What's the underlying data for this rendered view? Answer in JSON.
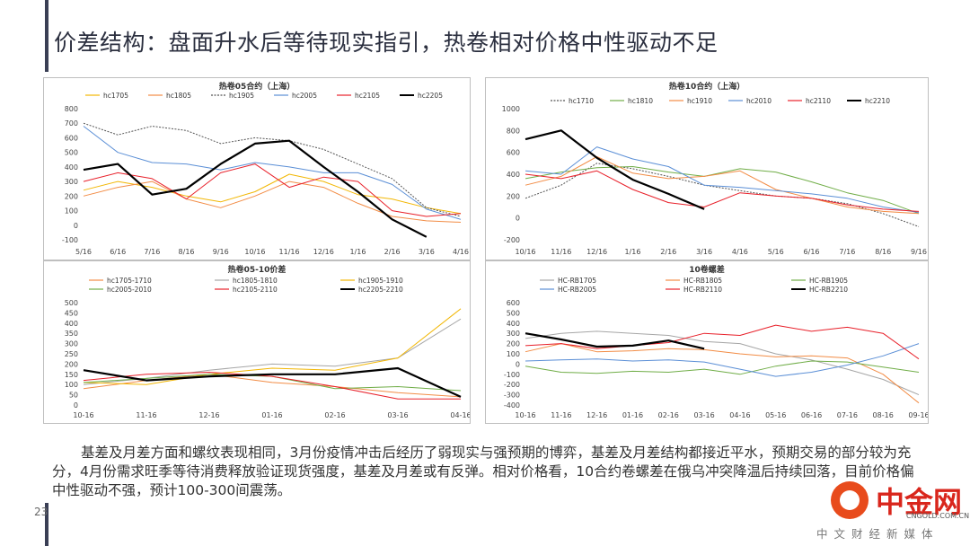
{
  "page": {
    "title": "价差结构：盘面升水后等待现实指引，热卷相对价格中性驱动不足",
    "page_number": "23",
    "description": "基差及月差方面和螺纹表现相同，3月份疫情冲击后经历了弱现实与强预期的博弈，基差及月差结构都接近平水，预期交易的部分较为充分，4月份需求旺季等待消费释放验证现货强度，基差及月差或有反弹。相对价格看，10合约卷螺差在俄乌冲突降温后持续回落，目前价格偏中性驱动不强，预计100-300间震荡。",
    "logo": {
      "main": "中金网",
      "url": "CNGOLD.COM.CN",
      "sub": "中文财经新媒体",
      "brand_color": "#d9261c"
    }
  },
  "chart_data": [
    {
      "id": "c1",
      "type": "line",
      "title": "热卷05合约（上海）",
      "ylim": [
        -100,
        800
      ],
      "yticks": [
        -100,
        0,
        100,
        200,
        300,
        400,
        500,
        600,
        700,
        800
      ],
      "x": [
        "5/16",
        "6/16",
        "7/16",
        "8/16",
        "9/16",
        "10/16",
        "11/16",
        "12/16",
        "1/16",
        "2/16",
        "3/16",
        "4/16"
      ],
      "series": [
        {
          "name": "hc1705",
          "color": "#f2b705",
          "width": 1,
          "values": [
            240,
            300,
            260,
            200,
            160,
            230,
            350,
            300,
            210,
            180,
            120,
            80
          ]
        },
        {
          "name": "hc1805",
          "color": "#f28c45",
          "width": 1,
          "values": [
            200,
            260,
            300,
            180,
            120,
            200,
            300,
            260,
            150,
            60,
            30,
            20
          ]
        },
        {
          "name": "hc1905",
          "color": "#555555",
          "width": 1,
          "dash": true,
          "values": [
            700,
            620,
            680,
            650,
            560,
            600,
            580,
            520,
            420,
            320,
            120,
            60
          ]
        },
        {
          "name": "hc2005",
          "color": "#5b8fd6",
          "width": 1,
          "values": [
            680,
            500,
            430,
            420,
            380,
            430,
            400,
            360,
            360,
            280,
            110,
            40
          ]
        },
        {
          "name": "hc2105",
          "color": "#e8202a",
          "width": 1,
          "values": [
            300,
            360,
            320,
            180,
            360,
            420,
            260,
            330,
            300,
            100,
            60,
            80
          ]
        },
        {
          "name": "hc2205",
          "color": "#000000",
          "width": 2.2,
          "values": [
            380,
            420,
            210,
            250,
            420,
            560,
            580,
            400,
            230,
            40,
            -80,
            null
          ]
        }
      ]
    },
    {
      "id": "c2",
      "type": "line",
      "title": "热卷10合约（上海）",
      "ylim": [
        -200,
        1000
      ],
      "yticks": [
        -200,
        0,
        200,
        400,
        600,
        800,
        1000
      ],
      "x": [
        "10/16",
        "11/16",
        "12/16",
        "1/16",
        "2/16",
        "3/16",
        "4/16",
        "5/16",
        "6/16",
        "7/16",
        "8/16",
        "9/16"
      ],
      "series": [
        {
          "name": "hc1710",
          "color": "#555555",
          "width": 1,
          "dash": true,
          "values": [
            180,
            300,
            500,
            450,
            380,
            300,
            250,
            200,
            180,
            130,
            40,
            -80
          ]
        },
        {
          "name": "hc1810",
          "color": "#70ad47",
          "width": 1,
          "values": [
            360,
            420,
            460,
            470,
            420,
            380,
            450,
            420,
            330,
            230,
            160,
            40
          ]
        },
        {
          "name": "hc1910",
          "color": "#f28c45",
          "width": 1,
          "values": [
            300,
            380,
            560,
            410,
            360,
            380,
            430,
            260,
            180,
            100,
            60,
            40
          ]
        },
        {
          "name": "hc2010",
          "color": "#5b8fd6",
          "width": 1,
          "values": [
            430,
            400,
            650,
            540,
            470,
            300,
            280,
            250,
            220,
            180,
            100,
            50
          ]
        },
        {
          "name": "hc2110",
          "color": "#e8202a",
          "width": 1,
          "values": [
            400,
            360,
            430,
            260,
            140,
            100,
            230,
            200,
            180,
            120,
            80,
            60
          ]
        },
        {
          "name": "hc2210",
          "color": "#000000",
          "width": 2.2,
          "values": [
            720,
            800,
            550,
            350,
            220,
            80,
            null,
            null,
            null,
            null,
            null,
            null
          ]
        }
      ]
    },
    {
      "id": "c3",
      "type": "line",
      "title": "热卷05-10价差",
      "ylim": [
        0,
        500
      ],
      "yticks": [
        0,
        50,
        100,
        150,
        200,
        250,
        300,
        350,
        400,
        450,
        500
      ],
      "x": [
        "10-16",
        "11-16",
        "12-16",
        "01-16",
        "02-16",
        "03-16",
        "04-16"
      ],
      "series": [
        {
          "name": "hc1705-1710",
          "color": "#f28c45",
          "width": 1,
          "values": [
            80,
            120,
            150,
            110,
            90,
            60,
            40
          ]
        },
        {
          "name": "hc1805-1810",
          "color": "#a6a6a6",
          "width": 1,
          "values": [
            100,
            130,
            170,
            200,
            190,
            230,
            420
          ]
        },
        {
          "name": "hc1905-1910",
          "color": "#f2b705",
          "width": 1,
          "values": [
            110,
            100,
            150,
            180,
            170,
            230,
            470
          ]
        },
        {
          "name": "hc2005-2010",
          "color": "#70ad47",
          "width": 1,
          "values": [
            110,
            130,
            150,
            140,
            80,
            90,
            70
          ]
        },
        {
          "name": "hc2105-2110",
          "color": "#e8202a",
          "width": 1,
          "values": [
            120,
            150,
            160,
            140,
            90,
            30,
            30
          ]
        },
        {
          "name": "hc2205-2210",
          "color": "#000000",
          "width": 2.2,
          "values": [
            170,
            120,
            140,
            150,
            150,
            180,
            40
          ]
        }
      ]
    },
    {
      "id": "c4",
      "type": "line",
      "title": "10卷螺差",
      "ylim": [
        -400,
        600
      ],
      "yticks": [
        -400,
        -300,
        -200,
        -100,
        0,
        100,
        200,
        300,
        400,
        500,
        600
      ],
      "x": [
        "10-16",
        "11-16",
        "12-16",
        "01-16",
        "02-16",
        "03-16",
        "04-16",
        "05-16",
        "06-16",
        "07-16",
        "08-16",
        "09-16"
      ],
      "series": [
        {
          "name": "HC-RB1705",
          "color": "#a6a6a6",
          "width": 1,
          "values": [
            250,
            300,
            320,
            300,
            280,
            220,
            200,
            100,
            40,
            -50,
            -150,
            -300
          ]
        },
        {
          "name": "HC-RB1805",
          "color": "#f28c45",
          "width": 1,
          "values": [
            120,
            200,
            120,
            130,
            150,
            140,
            100,
            70,
            80,
            60,
            -100,
            -380
          ]
        },
        {
          "name": "HC-RB1905",
          "color": "#70ad47",
          "width": 1,
          "values": [
            -20,
            -80,
            -90,
            -70,
            -80,
            -50,
            -100,
            -20,
            30,
            20,
            -30,
            -80
          ]
        },
        {
          "name": "HC-RB2005",
          "color": "#5b8fd6",
          "width": 1,
          "values": [
            30,
            40,
            50,
            30,
            40,
            20,
            -50,
            -120,
            -80,
            -10,
            80,
            200
          ]
        },
        {
          "name": "HC-RB2110",
          "color": "#e8202a",
          "width": 1,
          "values": [
            180,
            200,
            150,
            180,
            210,
            300,
            280,
            380,
            320,
            360,
            300,
            50
          ]
        },
        {
          "name": "HC-RB2210",
          "color": "#000000",
          "width": 2.2,
          "values": [
            300,
            240,
            170,
            180,
            230,
            150,
            null,
            null,
            null,
            null,
            null,
            null
          ]
        }
      ]
    }
  ]
}
